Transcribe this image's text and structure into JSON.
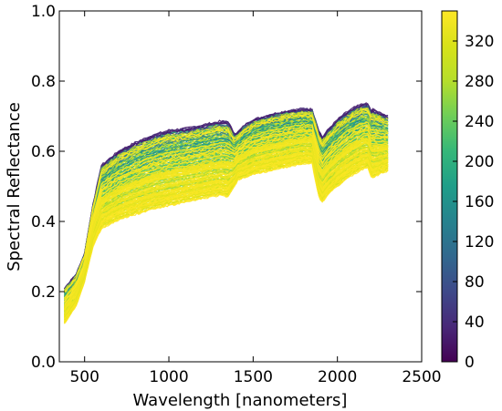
{
  "chart_data": {
    "type": "line",
    "title": "",
    "xlabel": "Wavelength [nanometers]",
    "ylabel": "Spectral Reflectance",
    "xlim": [
      350,
      2500
    ],
    "ylim": [
      0.0,
      1.0
    ],
    "x_ticks": [
      500,
      1000,
      1500,
      2000,
      2500
    ],
    "x_tick_labels": [
      "500",
      "1000",
      "1500",
      "2000",
      "2500"
    ],
    "y_ticks": [
      0.0,
      0.2,
      0.4,
      0.6,
      0.8,
      1.0
    ],
    "y_tick_labels": [
      "0.0",
      "0.2",
      "0.4",
      "0.6",
      "0.8",
      "1.0"
    ],
    "grid": false,
    "colormap": "viridis",
    "colorbar": {
      "range": [
        0,
        350
      ],
      "ticks": [
        0,
        40,
        80,
        120,
        160,
        200,
        240,
        280,
        320
      ],
      "tick_labels": [
        "0",
        "40",
        "80",
        "120",
        "160",
        "200",
        "240",
        "280",
        "320"
      ]
    },
    "spectrum_count": 350,
    "wavelength_range": [
      380,
      2300
    ],
    "envelope": {
      "x": [
        380,
        450,
        500,
        550,
        600,
        700,
        800,
        900,
        1000,
        1100,
        1200,
        1300,
        1350,
        1390,
        1410,
        1450,
        1500,
        1600,
        1700,
        1800,
        1850,
        1890,
        1910,
        1950,
        2000,
        2050,
        2100,
        2150,
        2180,
        2200,
        2210,
        2250,
        2300
      ],
      "upper": [
        0.21,
        0.25,
        0.31,
        0.45,
        0.56,
        0.6,
        0.625,
        0.645,
        0.66,
        0.665,
        0.675,
        0.685,
        0.685,
        0.65,
        0.655,
        0.675,
        0.69,
        0.705,
        0.715,
        0.722,
        0.72,
        0.66,
        0.64,
        0.665,
        0.69,
        0.71,
        0.725,
        0.735,
        0.735,
        0.715,
        0.72,
        0.71,
        0.7
      ],
      "lower": [
        0.11,
        0.16,
        0.23,
        0.33,
        0.38,
        0.405,
        0.42,
        0.435,
        0.445,
        0.455,
        0.465,
        0.475,
        0.47,
        0.5,
        0.52,
        0.525,
        0.535,
        0.545,
        0.555,
        0.565,
        0.565,
        0.47,
        0.455,
        0.48,
        0.5,
        0.52,
        0.535,
        0.55,
        0.555,
        0.53,
        0.525,
        0.535,
        0.545
      ]
    }
  }
}
